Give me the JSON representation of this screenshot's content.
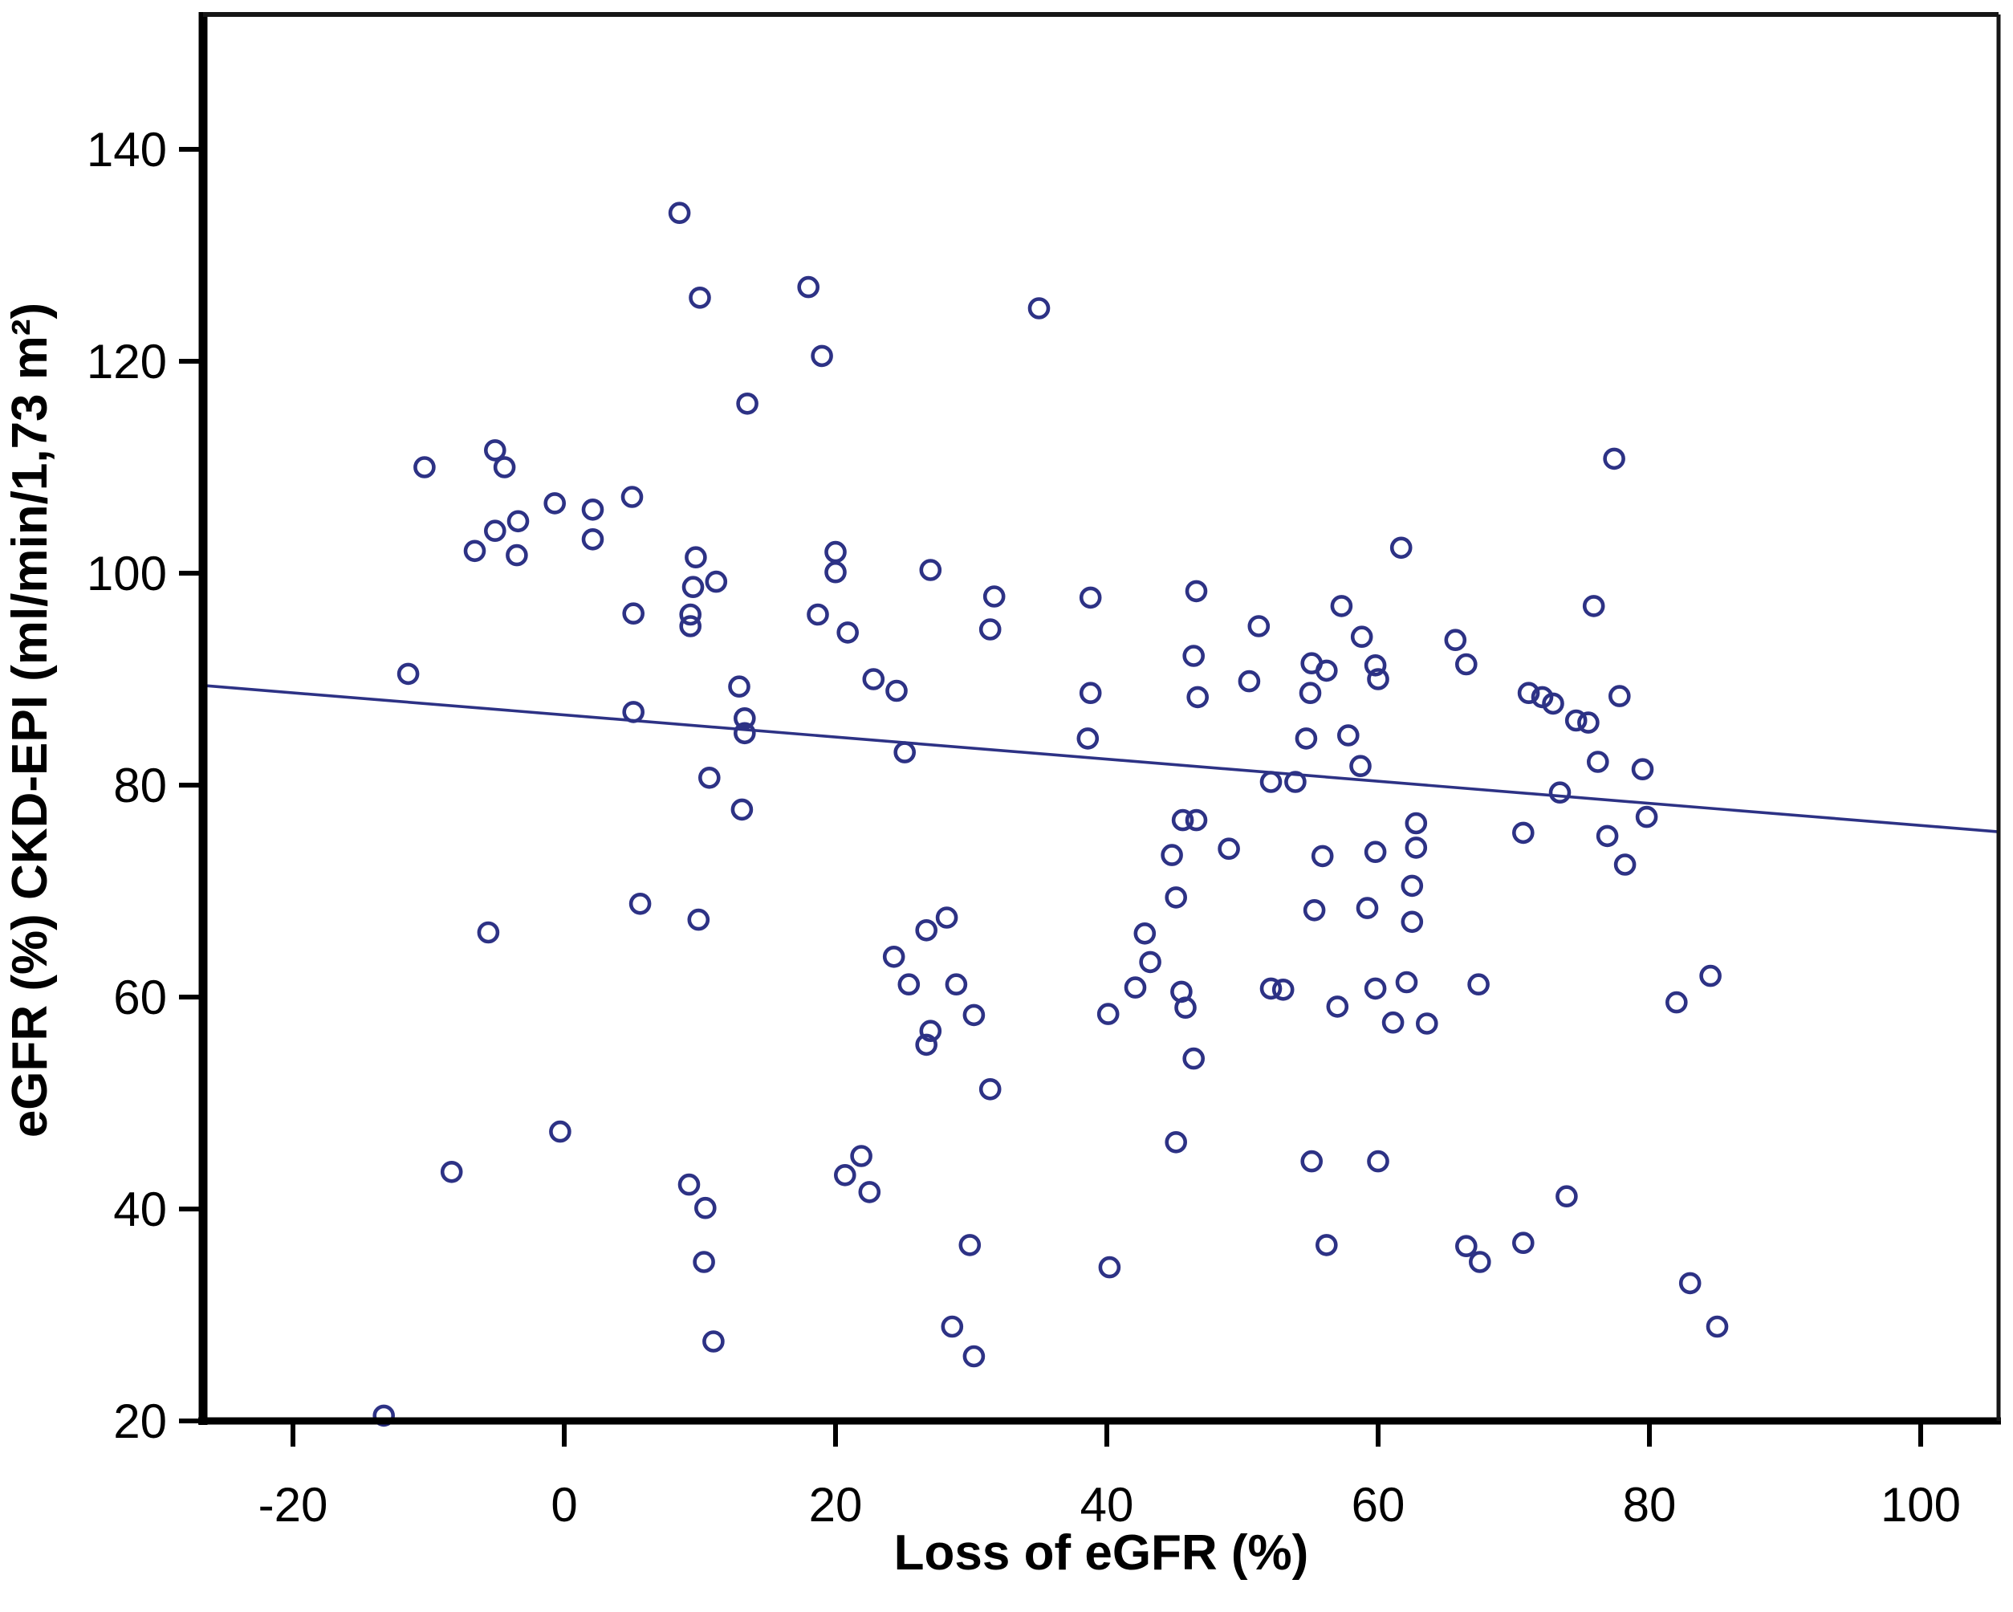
{
  "chart_data": {
    "type": "scatter",
    "title": "",
    "xlabel": "Loss of eGFR (%)",
    "ylabel": "eGFR (%) CKD-EPI (ml/min/1,73 m²)",
    "xlim": [
      -26.6,
      105.7
    ],
    "ylim": [
      20,
      152.6
    ],
    "x_ticks": [
      -20,
      0,
      20,
      40,
      60,
      80,
      100
    ],
    "y_ticks": [
      20,
      40,
      60,
      80,
      100,
      120,
      140
    ],
    "grid": false,
    "legend": "none",
    "marker": "open-circle",
    "colors": {
      "point_stroke": "#2d3285",
      "trend_line": "#2d3285",
      "frame": "#000000",
      "background": "#ffffff"
    },
    "trendline": {
      "x1": -26.6,
      "y1": 89.4,
      "x2": 105.7,
      "y2": 75.6
    },
    "points": [
      [
        -13.3,
        20.5
      ],
      [
        -11.5,
        90.5
      ],
      [
        -10.3,
        110.0
      ],
      [
        -8.3,
        43.5
      ],
      [
        -6.6,
        102.1
      ],
      [
        -5.6,
        66.1
      ],
      [
        -5.1,
        111.6
      ],
      [
        -5.1,
        104.0
      ],
      [
        -4.4,
        110.0
      ],
      [
        -3.5,
        101.7
      ],
      [
        -3.4,
        104.9
      ],
      [
        -0.7,
        106.6
      ],
      [
        -0.3,
        47.3
      ],
      [
        2.1,
        106.0
      ],
      [
        2.1,
        103.2
      ],
      [
        5.0,
        107.2
      ],
      [
        5.1,
        96.2
      ],
      [
        5.1,
        86.9
      ],
      [
        5.6,
        68.8
      ],
      [
        8.5,
        134.0
      ],
      [
        9.2,
        42.3
      ],
      [
        9.3,
        96.1
      ],
      [
        9.3,
        95.0
      ],
      [
        9.5,
        98.7
      ],
      [
        9.7,
        101.5
      ],
      [
        9.9,
        67.3
      ],
      [
        10.0,
        126.0
      ],
      [
        10.3,
        35.0
      ],
      [
        10.4,
        40.1
      ],
      [
        10.7,
        80.7
      ],
      [
        11.0,
        27.5
      ],
      [
        11.2,
        99.2
      ],
      [
        12.9,
        89.3
      ],
      [
        13.1,
        77.7
      ],
      [
        13.3,
        86.3
      ],
      [
        13.3,
        84.9
      ],
      [
        13.5,
        116.0
      ],
      [
        18.0,
        127.0
      ],
      [
        18.7,
        96.1
      ],
      [
        19.0,
        120.5
      ],
      [
        20.0,
        102.0
      ],
      [
        20.0,
        100.1
      ],
      [
        20.7,
        43.2
      ],
      [
        20.9,
        94.4
      ],
      [
        21.9,
        45.0
      ],
      [
        22.5,
        41.6
      ],
      [
        22.8,
        90.0
      ],
      [
        24.3,
        63.8
      ],
      [
        24.5,
        88.9
      ],
      [
        25.1,
        83.1
      ],
      [
        25.4,
        61.2
      ],
      [
        26.7,
        66.3
      ],
      [
        26.7,
        55.5
      ],
      [
        27.0,
        100.3
      ],
      [
        27.0,
        56.8
      ],
      [
        28.2,
        67.5
      ],
      [
        28.6,
        28.9
      ],
      [
        28.9,
        61.2
      ],
      [
        29.9,
        36.6
      ],
      [
        30.2,
        58.3
      ],
      [
        30.2,
        26.1
      ],
      [
        31.4,
        94.7
      ],
      [
        31.4,
        51.3
      ],
      [
        31.7,
        97.8
      ],
      [
        35.0,
        125.0
      ],
      [
        38.6,
        84.4
      ],
      [
        38.8,
        97.7
      ],
      [
        38.8,
        88.7
      ],
      [
        40.1,
        58.4
      ],
      [
        40.2,
        34.5
      ],
      [
        42.1,
        60.9
      ],
      [
        42.8,
        66.0
      ],
      [
        43.2,
        63.3
      ],
      [
        44.8,
        73.4
      ],
      [
        45.1,
        69.4
      ],
      [
        45.1,
        46.3
      ],
      [
        45.5,
        60.5
      ],
      [
        45.6,
        76.7
      ],
      [
        45.8,
        59.0
      ],
      [
        46.4,
        92.2
      ],
      [
        46.4,
        54.2
      ],
      [
        46.6,
        98.3
      ],
      [
        46.6,
        76.7
      ],
      [
        46.7,
        88.3
      ],
      [
        49.0,
        74.0
      ],
      [
        50.5,
        89.8
      ],
      [
        51.2,
        95.0
      ],
      [
        52.1,
        80.3
      ],
      [
        52.1,
        60.8
      ],
      [
        53.0,
        60.7
      ],
      [
        53.9,
        80.3
      ],
      [
        54.7,
        84.4
      ],
      [
        55.0,
        88.7
      ],
      [
        55.1,
        91.5
      ],
      [
        55.1,
        44.5
      ],
      [
        55.3,
        68.2
      ],
      [
        55.9,
        73.3
      ],
      [
        56.2,
        90.8
      ],
      [
        56.2,
        36.6
      ],
      [
        57.0,
        59.1
      ],
      [
        57.3,
        96.9
      ],
      [
        57.8,
        84.7
      ],
      [
        58.7,
        81.8
      ],
      [
        58.8,
        94.0
      ],
      [
        59.2,
        68.4
      ],
      [
        59.8,
        91.3
      ],
      [
        59.8,
        73.7
      ],
      [
        59.8,
        60.8
      ],
      [
        60.0,
        90.0
      ],
      [
        60.0,
        44.5
      ],
      [
        61.1,
        57.6
      ],
      [
        61.7,
        102.4
      ],
      [
        62.1,
        61.4
      ],
      [
        62.5,
        70.5
      ],
      [
        62.5,
        67.1
      ],
      [
        62.8,
        76.4
      ],
      [
        62.8,
        74.1
      ],
      [
        63.6,
        57.5
      ],
      [
        65.7,
        93.7
      ],
      [
        66.5,
        91.4
      ],
      [
        66.5,
        36.5
      ],
      [
        67.4,
        61.2
      ],
      [
        67.5,
        35.0
      ],
      [
        70.7,
        75.5
      ],
      [
        70.7,
        36.8
      ],
      [
        71.1,
        88.7
      ],
      [
        72.1,
        88.3
      ],
      [
        72.9,
        87.7
      ],
      [
        73.4,
        79.3
      ],
      [
        73.9,
        41.2
      ],
      [
        74.6,
        86.1
      ],
      [
        75.5,
        85.9
      ],
      [
        75.9,
        96.9
      ],
      [
        76.2,
        82.2
      ],
      [
        76.9,
        75.2
      ],
      [
        77.4,
        110.8
      ],
      [
        77.8,
        88.4
      ],
      [
        78.2,
        72.5
      ],
      [
        79.5,
        81.5
      ],
      [
        79.8,
        77.0
      ],
      [
        82.0,
        59.5
      ],
      [
        84.5,
        62.0
      ],
      [
        83.0,
        33.0
      ],
      [
        85.0,
        28.9
      ]
    ]
  }
}
